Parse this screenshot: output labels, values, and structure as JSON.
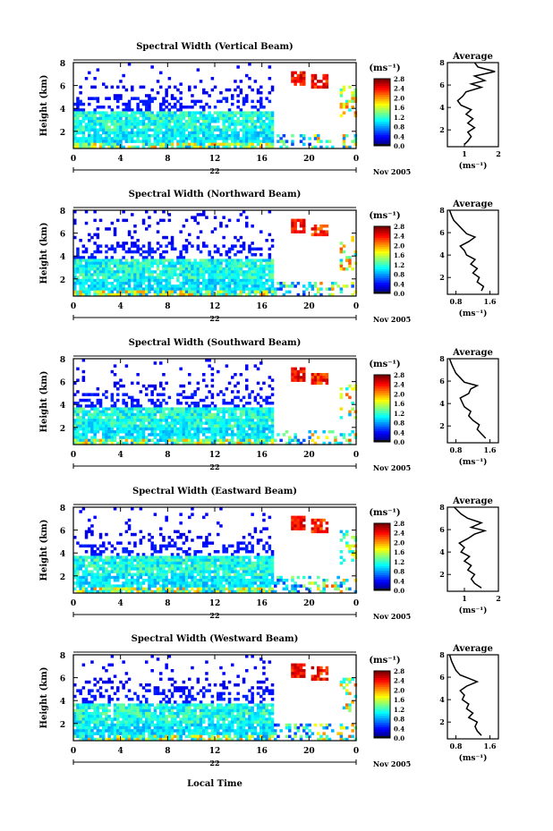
{
  "figure": {
    "xlabel": "Local Time",
    "ylabel": "Height (km)",
    "date_label": "Nov 2005",
    "day_label": "22",
    "unit_label": "(ms⁻¹)",
    "avg_title": "Average",
    "avg_xlabel": "(ms⁻¹)"
  },
  "chart_data": [
    {
      "type": "heatmap",
      "title": "Spectral Width (Vertical Beam)",
      "xlabel": "",
      "ylabel": "Height (km)",
      "x_ticks": [
        "0",
        "4",
        "8",
        "12",
        "16",
        "20",
        "0"
      ],
      "x_range_hours": [
        0,
        24
      ],
      "y_ticks": [
        "2",
        "4",
        "6",
        "8"
      ],
      "ylim_km": [
        0.5,
        8
      ],
      "colorbar": {
        "label": "(ms⁻¹)",
        "ticks": [
          "0.0",
          "0.4",
          "0.8",
          "1.2",
          "1.6",
          "2.0",
          "2.4",
          "2.8"
        ],
        "range": [
          0,
          3.0
        ]
      },
      "average_profile": {
        "title": "Average",
        "xlabel": "(ms⁻¹)",
        "x_ticks": [
          "1",
          "2"
        ],
        "xlim": [
          0.5,
          2.0
        ],
        "y_ticks": [
          "2",
          "4",
          "6",
          "8"
        ],
        "ylim_km": [
          0.5,
          8
        ],
        "points": [
          [
            1.0,
            0.7
          ],
          [
            1.1,
            1.0
          ],
          [
            1.2,
            1.4
          ],
          [
            1.1,
            1.8
          ],
          [
            1.3,
            2.2
          ],
          [
            1.1,
            2.6
          ],
          [
            1.25,
            3.0
          ],
          [
            1.05,
            3.4
          ],
          [
            1.2,
            3.8
          ],
          [
            0.9,
            4.2
          ],
          [
            0.8,
            4.6
          ],
          [
            0.95,
            5.0
          ],
          [
            1.05,
            5.4
          ],
          [
            1.5,
            5.8
          ],
          [
            1.2,
            6.1
          ],
          [
            1.6,
            6.4
          ],
          [
            1.3,
            6.8
          ],
          [
            1.9,
            7.2
          ],
          [
            1.4,
            7.6
          ],
          [
            1.3,
            8.0
          ]
        ]
      }
    },
    {
      "type": "heatmap",
      "title": "Spectral Width (Northward Beam)",
      "x_ticks": [
        "0",
        "4",
        "8",
        "12",
        "16",
        "20",
        "0"
      ],
      "y_ticks": [
        "2",
        "4",
        "6",
        "8"
      ],
      "ylim_km": [
        0.5,
        8
      ],
      "colorbar": {
        "label": "(ms⁻¹)",
        "ticks": [
          "0.0",
          "0.4",
          "0.8",
          "1.2",
          "1.6",
          "2.0",
          "2.4",
          "2.8"
        ],
        "range": [
          0,
          3.0
        ]
      },
      "average_profile": {
        "title": "Average",
        "xlabel": "(ms⁻¹)",
        "x_ticks": [
          "0.8",
          "1.6"
        ],
        "xlim": [
          0.6,
          1.8
        ],
        "y_ticks": [
          "2",
          "4",
          "6",
          "8"
        ],
        "ylim_km": [
          0.5,
          8
        ],
        "points": [
          [
            1.4,
            0.8
          ],
          [
            1.45,
            1.2
          ],
          [
            1.3,
            1.6
          ],
          [
            1.35,
            2.0
          ],
          [
            1.2,
            2.4
          ],
          [
            1.3,
            2.8
          ],
          [
            1.15,
            3.2
          ],
          [
            1.25,
            3.6
          ],
          [
            1.05,
            4.0
          ],
          [
            1.0,
            4.4
          ],
          [
            0.9,
            4.8
          ],
          [
            1.1,
            5.2
          ],
          [
            1.25,
            5.6
          ],
          [
            1.05,
            5.9
          ],
          [
            0.95,
            6.3
          ],
          [
            0.85,
            6.7
          ],
          [
            0.75,
            7.1
          ],
          [
            0.7,
            7.5
          ],
          [
            0.65,
            8.0
          ]
        ]
      }
    },
    {
      "type": "heatmap",
      "title": "Spectral Width (Southward Beam)",
      "x_ticks": [
        "0",
        "4",
        "8",
        "12",
        "16",
        "20",
        "0"
      ],
      "y_ticks": [
        "2",
        "4",
        "6",
        "8"
      ],
      "ylim_km": [
        0.5,
        8
      ],
      "colorbar": {
        "label": "(ms⁻¹)",
        "ticks": [
          "0.0",
          "0.4",
          "0.8",
          "1.2",
          "1.6",
          "2.0",
          "2.4",
          "2.8"
        ],
        "range": [
          0,
          3.0
        ]
      },
      "average_profile": {
        "title": "Average",
        "xlabel": "(ms⁻¹)",
        "x_ticks": [
          "0.8",
          "1.6"
        ],
        "xlim": [
          0.6,
          1.8
        ],
        "y_ticks": [
          "2",
          "4",
          "6",
          "8"
        ],
        "ylim_km": [
          0.5,
          8
        ],
        "points": [
          [
            1.5,
            0.9
          ],
          [
            1.4,
            1.3
          ],
          [
            1.3,
            1.7
          ],
          [
            1.35,
            2.1
          ],
          [
            1.2,
            2.5
          ],
          [
            1.1,
            2.9
          ],
          [
            1.15,
            3.3
          ],
          [
            1.0,
            3.7
          ],
          [
            0.95,
            4.1
          ],
          [
            0.9,
            4.5
          ],
          [
            1.1,
            4.9
          ],
          [
            1.15,
            5.3
          ],
          [
            1.3,
            5.6
          ],
          [
            1.0,
            5.9
          ],
          [
            0.9,
            6.3
          ],
          [
            0.8,
            6.7
          ],
          [
            0.75,
            7.1
          ],
          [
            0.7,
            7.5
          ],
          [
            0.65,
            8.0
          ]
        ]
      }
    },
    {
      "type": "heatmap",
      "title": "Spectral Width (Eastward Beam)",
      "x_ticks": [
        "0",
        "4",
        "8",
        "12",
        "16",
        "20",
        "0"
      ],
      "y_ticks": [
        "2",
        "4",
        "6",
        "8"
      ],
      "ylim_km": [
        0.5,
        8
      ],
      "colorbar": {
        "label": "(ms⁻¹)",
        "ticks": [
          "0.0",
          "0.4",
          "0.8",
          "1.2",
          "1.6",
          "2.0",
          "2.4",
          "2.8"
        ],
        "range": [
          0,
          3.0
        ]
      },
      "average_profile": {
        "title": "Average",
        "xlabel": "(ms⁻¹)",
        "x_ticks": [
          "1",
          "2"
        ],
        "xlim": [
          0.5,
          2.0
        ],
        "y_ticks": [
          "2",
          "4",
          "6",
          "8"
        ],
        "ylim_km": [
          0.5,
          8
        ],
        "points": [
          [
            1.5,
            0.8
          ],
          [
            1.3,
            1.2
          ],
          [
            1.2,
            1.6
          ],
          [
            1.3,
            2.0
          ],
          [
            1.1,
            2.4
          ],
          [
            1.2,
            2.8
          ],
          [
            1.0,
            3.2
          ],
          [
            1.15,
            3.6
          ],
          [
            0.9,
            4.0
          ],
          [
            1.0,
            4.4
          ],
          [
            0.85,
            4.8
          ],
          [
            1.1,
            5.2
          ],
          [
            1.3,
            5.6
          ],
          [
            1.6,
            5.9
          ],
          [
            1.2,
            6.2
          ],
          [
            1.5,
            6.6
          ],
          [
            1.1,
            7.0
          ],
          [
            0.9,
            7.4
          ],
          [
            0.7,
            8.0
          ]
        ]
      }
    },
    {
      "type": "heatmap",
      "title": "Spectral Width (Westward Beam)",
      "xlabel": "Local Time",
      "x_ticks": [
        "0",
        "4",
        "8",
        "12",
        "16",
        "20",
        "0"
      ],
      "y_ticks": [
        "2",
        "4",
        "6",
        "8"
      ],
      "ylim_km": [
        0.5,
        8
      ],
      "colorbar": {
        "label": "(ms⁻¹)",
        "ticks": [
          "0.0",
          "0.4",
          "0.8",
          "1.2",
          "1.6",
          "2.0",
          "2.4",
          "2.8"
        ],
        "range": [
          0,
          3.0
        ]
      },
      "average_profile": {
        "title": "Average",
        "xlabel": "(ms⁻¹)",
        "x_ticks": [
          "0.8",
          "1.6"
        ],
        "xlim": [
          0.6,
          1.8
        ],
        "y_ticks": [
          "2",
          "4",
          "6",
          "8"
        ],
        "ylim_km": [
          0.5,
          8
        ],
        "points": [
          [
            1.4,
            0.8
          ],
          [
            1.3,
            1.2
          ],
          [
            1.25,
            1.6
          ],
          [
            1.3,
            2.0
          ],
          [
            1.1,
            2.4
          ],
          [
            1.2,
            2.8
          ],
          [
            1.05,
            3.2
          ],
          [
            1.1,
            3.6
          ],
          [
            0.95,
            4.0
          ],
          [
            1.0,
            4.4
          ],
          [
            0.9,
            4.8
          ],
          [
            1.05,
            5.2
          ],
          [
            1.3,
            5.6
          ],
          [
            1.1,
            5.9
          ],
          [
            0.9,
            6.2
          ],
          [
            0.8,
            6.6
          ],
          [
            0.75,
            7.0
          ],
          [
            0.7,
            7.4
          ],
          [
            0.65,
            8.0
          ]
        ]
      }
    }
  ]
}
